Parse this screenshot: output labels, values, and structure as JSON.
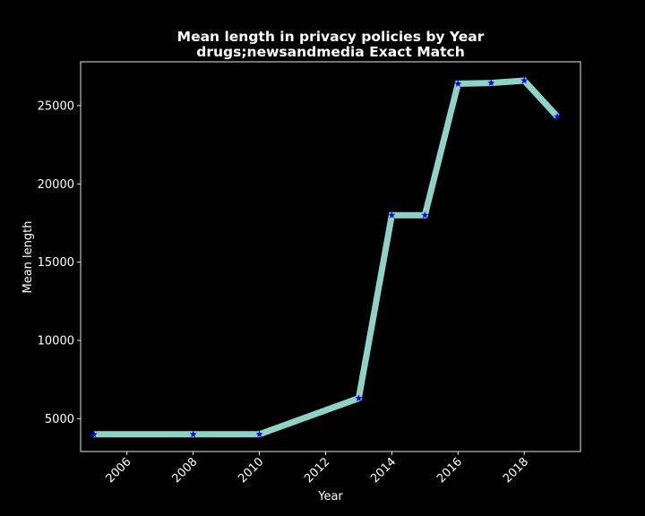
{
  "chart_data": {
    "type": "line",
    "title_line1": "Mean length in privacy policies by Year",
    "title_line2": "drugs;newsandmedia Exact Match",
    "xlabel": "Year",
    "ylabel": "Mean length",
    "xlim": [
      2004.6,
      2019.7
    ],
    "ylim": [
      2900,
      27800
    ],
    "xticks": [
      2006,
      2008,
      2010,
      2012,
      2014,
      2016,
      2018
    ],
    "yticks": [
      5000,
      10000,
      15000,
      20000,
      25000
    ],
    "grid": false,
    "series": [
      {
        "line_color": "#8dd3c7",
        "marker_color": "#0000ff",
        "marker": "star",
        "x": [
          2005,
          2008,
          2010,
          2013,
          2014,
          2015,
          2016,
          2017,
          2018,
          2019
        ],
        "y": [
          4000,
          4000,
          4000,
          6300,
          18000,
          18000,
          26400,
          26450,
          26600,
          24300
        ]
      }
    ],
    "colors": {
      "background": "#000000",
      "text": "#ffffff",
      "axes": "#ffffff"
    }
  }
}
